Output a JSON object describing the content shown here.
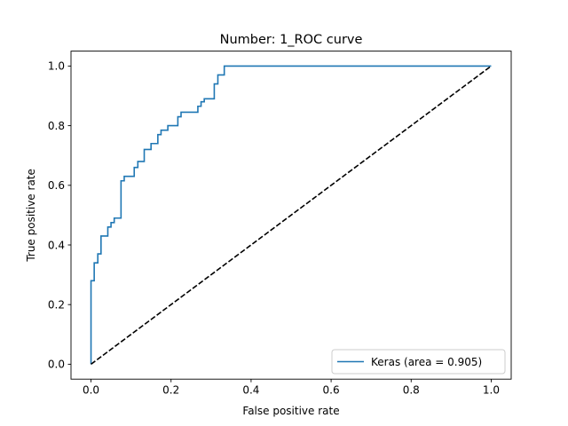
{
  "chart_data": {
    "type": "line",
    "title": "Number:  1_ROC curve",
    "xlabel": "False positive rate",
    "ylabel": "True positive rate",
    "xlim": [
      -0.05,
      1.05
    ],
    "ylim": [
      -0.05,
      1.05
    ],
    "xticks": [
      0.0,
      0.2,
      0.4,
      0.6,
      0.8,
      1.0
    ],
    "yticks": [
      0.0,
      0.2,
      0.4,
      0.6,
      0.8,
      1.0
    ],
    "xtick_labels": [
      "0.0",
      "0.2",
      "0.4",
      "0.6",
      "0.8",
      "1.0"
    ],
    "ytick_labels": [
      "0.0",
      "0.2",
      "0.4",
      "0.6",
      "0.8",
      "1.0"
    ],
    "grid": false,
    "legend_position": "lower right",
    "series": [
      {
        "name": "Keras (area = 0.905)",
        "color": "#1f77b4",
        "style": "solid",
        "x": [
          0.0,
          0.0,
          0.008,
          0.008,
          0.017,
          0.017,
          0.025,
          0.025,
          0.042,
          0.042,
          0.05,
          0.05,
          0.058,
          0.058,
          0.075,
          0.075,
          0.083,
          0.083,
          0.108,
          0.108,
          0.117,
          0.117,
          0.133,
          0.133,
          0.15,
          0.15,
          0.167,
          0.167,
          0.175,
          0.175,
          0.192,
          0.192,
          0.217,
          0.217,
          0.225,
          0.225,
          0.267,
          0.267,
          0.275,
          0.275,
          0.283,
          0.283,
          0.308,
          0.308,
          0.317,
          0.317,
          0.333,
          0.333,
          1.0
        ],
        "y": [
          0.0,
          0.28,
          0.28,
          0.34,
          0.34,
          0.37,
          0.37,
          0.43,
          0.43,
          0.46,
          0.46,
          0.475,
          0.475,
          0.49,
          0.49,
          0.615,
          0.615,
          0.63,
          0.63,
          0.66,
          0.66,
          0.68,
          0.68,
          0.72,
          0.72,
          0.74,
          0.74,
          0.77,
          0.77,
          0.785,
          0.785,
          0.8,
          0.8,
          0.83,
          0.83,
          0.845,
          0.845,
          0.865,
          0.865,
          0.88,
          0.88,
          0.89,
          0.89,
          0.94,
          0.94,
          0.97,
          0.97,
          1.0,
          1.0
        ]
      },
      {
        "name": "",
        "color": "#000000",
        "style": "dashed",
        "x": [
          0.0,
          1.0
        ],
        "y": [
          0.0,
          1.0
        ]
      }
    ]
  }
}
